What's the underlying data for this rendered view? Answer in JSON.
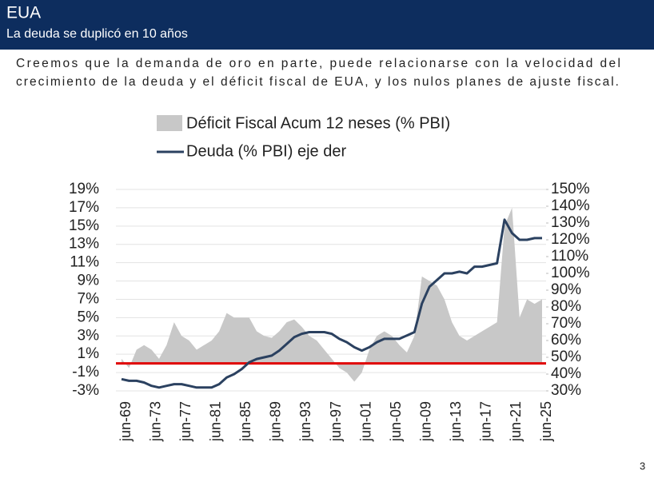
{
  "header": {
    "title": "EUA",
    "subtitle": "La deuda se duplicó en 10 años"
  },
  "body": [
    "Creemos que la demanda de oro en parte, puede relacionarse con la velocidad del",
    "crecimiento de la deuda y el déficit fiscal de EUA, y los nulos planes de ajuste fiscal."
  ],
  "page_number": "3",
  "chart_data": {
    "type": "line",
    "categories": [
      "jun-69",
      null,
      null,
      null,
      "jun-73",
      null,
      null,
      null,
      "jun-77",
      null,
      null,
      null,
      "jun-81",
      null,
      null,
      null,
      "jun-85",
      null,
      null,
      null,
      "jun-89",
      null,
      null,
      null,
      "jun-93",
      null,
      null,
      null,
      "jun-97",
      null,
      null,
      null,
      "jun-01",
      null,
      null,
      null,
      "jun-05",
      null,
      null,
      null,
      "jun-09",
      null,
      null,
      null,
      "jun-13",
      null,
      null,
      null,
      "jun-17",
      null,
      null,
      null,
      "jun-21",
      null,
      null,
      null,
      "jun-25"
    ],
    "series": [
      {
        "name": "Déficit Fiscal Acum 12 neses (% PBI)",
        "type": "area",
        "color": "#c8c8c8",
        "values": [
          0.5,
          -0.5,
          1.5,
          2,
          1.5,
          0.5,
          2,
          4.5,
          3,
          2.5,
          1.5,
          2,
          2.5,
          3.5,
          5.5,
          5,
          5,
          5,
          3.5,
          3,
          2.8,
          3.5,
          4.5,
          4.8,
          4,
          3,
          2.5,
          1.5,
          0.5,
          -0.5,
          -1,
          -2,
          -1,
          1.5,
          3,
          3.5,
          3,
          2,
          1.2,
          3,
          9.5,
          9,
          8.5,
          7,
          4.5,
          3,
          2.5,
          3,
          3.5,
          4,
          4.5,
          15,
          17,
          5,
          7,
          6.5,
          7
        ]
      },
      {
        "name": "Deuda (% PBI) eje der",
        "type": "line",
        "color": "#2b4160",
        "axis": "y2",
        "values": [
          37,
          36,
          36,
          35,
          33,
          32,
          33,
          34,
          34,
          33,
          32,
          32,
          32,
          34,
          38,
          40,
          43,
          47,
          49,
          50,
          51,
          54,
          58,
          62,
          64,
          65,
          65,
          65,
          64,
          61,
          59,
          56,
          54,
          56,
          59,
          61,
          61,
          61,
          63,
          65,
          82,
          92,
          96,
          100,
          100,
          101,
          100,
          104,
          104,
          105,
          106,
          132,
          124,
          120,
          120,
          121,
          121
        ]
      }
    ],
    "ylim": [
      -3,
      19
    ],
    "yticks": [
      {
        "value": -3,
        "label": "-3%"
      },
      {
        "value": -1,
        "label": "-1%"
      },
      {
        "value": 1,
        "label": "1%"
      },
      {
        "value": 3,
        "label": "3%"
      },
      {
        "value": 5,
        "label": "5%"
      },
      {
        "value": 7,
        "label": "7%"
      },
      {
        "value": 9,
        "label": "9%"
      },
      {
        "value": 11,
        "label": "11%"
      },
      {
        "value": 13,
        "label": "13%"
      },
      {
        "value": 15,
        "label": "15%"
      },
      {
        "value": 17,
        "label": "17%"
      },
      {
        "value": 19,
        "label": "19%"
      }
    ],
    "y2lim": [
      30,
      150
    ],
    "y2ticks": [
      {
        "value": 30,
        "label": "30%"
      },
      {
        "value": 40,
        "label": "40%"
      },
      {
        "value": 50,
        "label": "50%"
      },
      {
        "value": 60,
        "label": "60%"
      },
      {
        "value": 70,
        "label": "70%"
      },
      {
        "value": 80,
        "label": "80%"
      },
      {
        "value": 90,
        "label": "90%"
      },
      {
        "value": 100,
        "label": "100%"
      },
      {
        "value": 110,
        "label": "110%"
      },
      {
        "value": 120,
        "label": "120%"
      },
      {
        "value": 130,
        "label": "130%"
      },
      {
        "value": 140,
        "label": "140%"
      },
      {
        "value": 150,
        "label": "150%"
      }
    ],
    "grid": true,
    "reference_line": {
      "value": 0,
      "color": "#e00000"
    },
    "legend": "top"
  }
}
